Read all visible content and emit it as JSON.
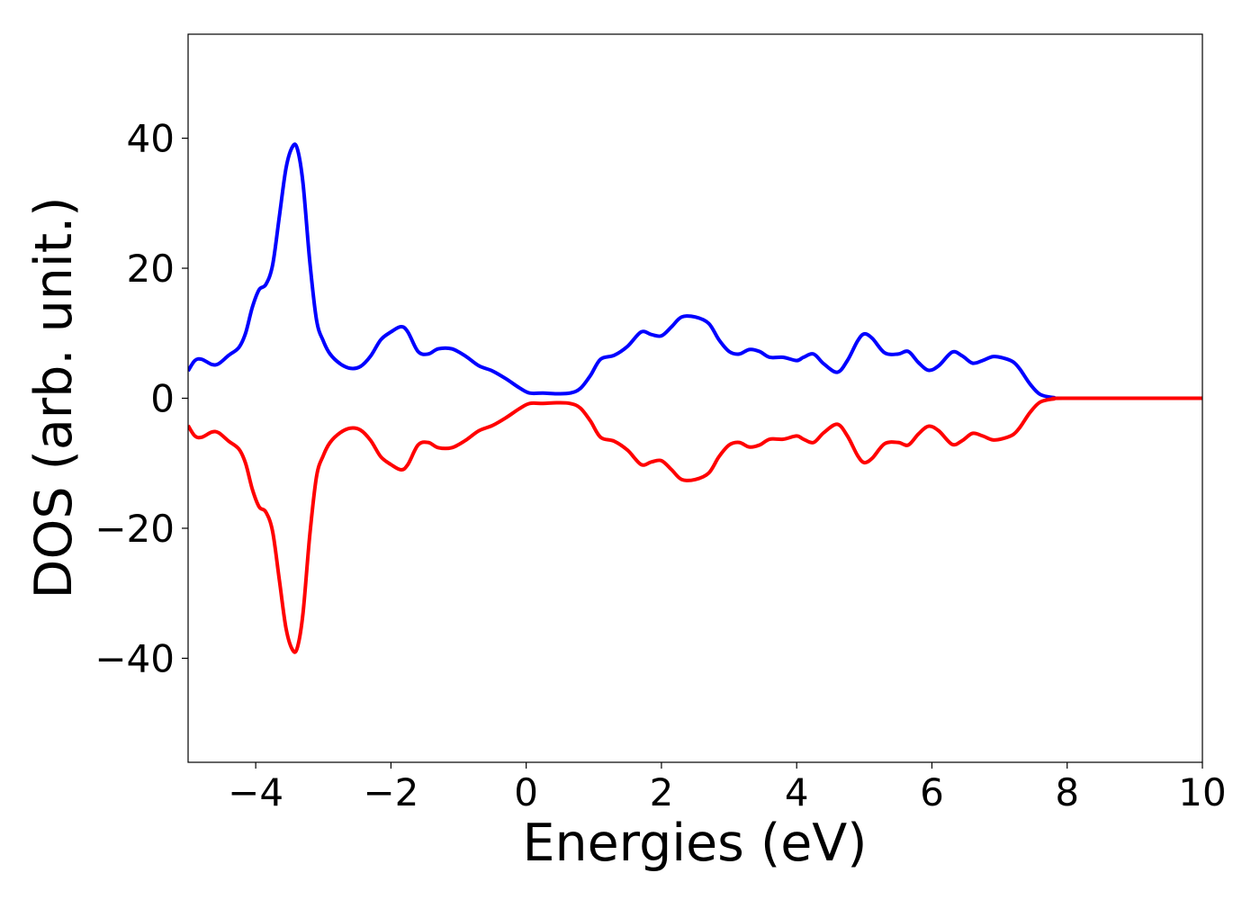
{
  "chart_data": {
    "type": "line",
    "title": "",
    "xlabel": "Energies (eV)",
    "ylabel": "DOS (arb. unit.)",
    "xlim": [
      -5,
      10
    ],
    "ylim": [
      -56,
      56
    ],
    "grid": false,
    "legend": "none",
    "x_ticks": [
      {
        "value": -4,
        "label": "−4"
      },
      {
        "value": -2,
        "label": "−2"
      },
      {
        "value": 0,
        "label": "0"
      },
      {
        "value": 2,
        "label": "2"
      },
      {
        "value": 4,
        "label": "4"
      },
      {
        "value": 6,
        "label": "6"
      },
      {
        "value": 8,
        "label": "8"
      },
      {
        "value": 10,
        "label": "10"
      }
    ],
    "y_ticks": [
      {
        "value": 40,
        "label": "40"
      },
      {
        "value": 20,
        "label": "20"
      },
      {
        "value": 0,
        "label": "0"
      },
      {
        "value": -20,
        "label": "−20"
      },
      {
        "value": -40,
        "label": "−40"
      }
    ],
    "series": [
      {
        "color": "#0000ff",
        "points": [
          [
            -5.0,
            4.2
          ],
          [
            -4.9,
            5.8
          ],
          [
            -4.8,
            6.0
          ],
          [
            -4.65,
            5.2
          ],
          [
            -4.55,
            5.3
          ],
          [
            -4.4,
            6.6
          ],
          [
            -4.25,
            7.8
          ],
          [
            -4.15,
            10.0
          ],
          [
            -4.05,
            14.0
          ],
          [
            -3.95,
            16.7
          ],
          [
            -3.85,
            17.5
          ],
          [
            -3.75,
            20.5
          ],
          [
            -3.65,
            28.0
          ],
          [
            -3.55,
            35.5
          ],
          [
            -3.45,
            38.8
          ],
          [
            -3.38,
            38.2
          ],
          [
            -3.3,
            33.0
          ],
          [
            -3.2,
            21.0
          ],
          [
            -3.1,
            12.0
          ],
          [
            -3.0,
            8.8
          ],
          [
            -2.9,
            6.8
          ],
          [
            -2.75,
            5.3
          ],
          [
            -2.6,
            4.6
          ],
          [
            -2.45,
            4.9
          ],
          [
            -2.3,
            6.5
          ],
          [
            -2.15,
            9.0
          ],
          [
            -2.0,
            10.2
          ],
          [
            -1.85,
            11.0
          ],
          [
            -1.75,
            10.2
          ],
          [
            -1.6,
            7.2
          ],
          [
            -1.45,
            6.8
          ],
          [
            -1.3,
            7.6
          ],
          [
            -1.1,
            7.6
          ],
          [
            -0.9,
            6.5
          ],
          [
            -0.7,
            5.0
          ],
          [
            -0.5,
            4.2
          ],
          [
            -0.3,
            3.0
          ],
          [
            -0.1,
            1.6
          ],
          [
            0.05,
            0.8
          ],
          [
            0.25,
            0.8
          ],
          [
            0.45,
            0.7
          ],
          [
            0.65,
            0.8
          ],
          [
            0.8,
            1.5
          ],
          [
            0.95,
            3.5
          ],
          [
            1.1,
            6.0
          ],
          [
            1.3,
            6.6
          ],
          [
            1.5,
            8.0
          ],
          [
            1.7,
            10.2
          ],
          [
            1.85,
            9.8
          ],
          [
            2.0,
            9.6
          ],
          [
            2.15,
            11.0
          ],
          [
            2.3,
            12.5
          ],
          [
            2.5,
            12.5
          ],
          [
            2.7,
            11.5
          ],
          [
            2.85,
            9.0
          ],
          [
            3.0,
            7.2
          ],
          [
            3.15,
            6.8
          ],
          [
            3.3,
            7.5
          ],
          [
            3.45,
            7.2
          ],
          [
            3.6,
            6.3
          ],
          [
            3.8,
            6.3
          ],
          [
            4.0,
            5.8
          ],
          [
            4.1,
            6.3
          ],
          [
            4.25,
            6.8
          ],
          [
            4.4,
            5.3
          ],
          [
            4.6,
            4.0
          ],
          [
            4.75,
            5.8
          ],
          [
            4.9,
            8.8
          ],
          [
            5.0,
            9.9
          ],
          [
            5.12,
            9.2
          ],
          [
            5.3,
            7.0
          ],
          [
            5.5,
            6.8
          ],
          [
            5.65,
            7.2
          ],
          [
            5.8,
            5.5
          ],
          [
            5.95,
            4.3
          ],
          [
            6.1,
            5.0
          ],
          [
            6.3,
            7.1
          ],
          [
            6.45,
            6.5
          ],
          [
            6.6,
            5.4
          ],
          [
            6.75,
            5.8
          ],
          [
            6.9,
            6.4
          ],
          [
            7.05,
            6.2
          ],
          [
            7.2,
            5.6
          ],
          [
            7.3,
            4.5
          ],
          [
            7.45,
            2.2
          ],
          [
            7.6,
            0.6
          ],
          [
            7.8,
            0.1
          ],
          [
            8.0,
            0.0
          ],
          [
            10.0,
            0.0
          ]
        ]
      },
      {
        "color": "#ff0000",
        "points": [
          [
            -5.0,
            -4.2
          ],
          [
            -4.9,
            -5.8
          ],
          [
            -4.8,
            -6.0
          ],
          [
            -4.65,
            -5.2
          ],
          [
            -4.55,
            -5.3
          ],
          [
            -4.4,
            -6.6
          ],
          [
            -4.25,
            -7.8
          ],
          [
            -4.15,
            -10.0
          ],
          [
            -4.05,
            -14.0
          ],
          [
            -3.95,
            -16.7
          ],
          [
            -3.85,
            -17.5
          ],
          [
            -3.75,
            -20.5
          ],
          [
            -3.65,
            -28.0
          ],
          [
            -3.55,
            -35.5
          ],
          [
            -3.45,
            -38.8
          ],
          [
            -3.38,
            -38.2
          ],
          [
            -3.3,
            -33.0
          ],
          [
            -3.2,
            -21.0
          ],
          [
            -3.1,
            -12.0
          ],
          [
            -3.0,
            -8.8
          ],
          [
            -2.9,
            -6.8
          ],
          [
            -2.75,
            -5.3
          ],
          [
            -2.6,
            -4.6
          ],
          [
            -2.45,
            -4.9
          ],
          [
            -2.3,
            -6.5
          ],
          [
            -2.15,
            -9.0
          ],
          [
            -2.0,
            -10.2
          ],
          [
            -1.85,
            -11.0
          ],
          [
            -1.75,
            -10.2
          ],
          [
            -1.6,
            -7.2
          ],
          [
            -1.45,
            -6.8
          ],
          [
            -1.3,
            -7.6
          ],
          [
            -1.1,
            -7.6
          ],
          [
            -0.9,
            -6.5
          ],
          [
            -0.7,
            -5.0
          ],
          [
            -0.5,
            -4.2
          ],
          [
            -0.3,
            -3.0
          ],
          [
            -0.1,
            -1.6
          ],
          [
            0.05,
            -0.8
          ],
          [
            0.25,
            -0.8
          ],
          [
            0.45,
            -0.7
          ],
          [
            0.65,
            -0.8
          ],
          [
            0.8,
            -1.5
          ],
          [
            0.95,
            -3.5
          ],
          [
            1.1,
            -6.0
          ],
          [
            1.3,
            -6.6
          ],
          [
            1.5,
            -8.0
          ],
          [
            1.7,
            -10.2
          ],
          [
            1.85,
            -9.8
          ],
          [
            2.0,
            -9.6
          ],
          [
            2.15,
            -11.0
          ],
          [
            2.3,
            -12.5
          ],
          [
            2.5,
            -12.5
          ],
          [
            2.7,
            -11.5
          ],
          [
            2.85,
            -9.0
          ],
          [
            3.0,
            -7.2
          ],
          [
            3.15,
            -6.8
          ],
          [
            3.3,
            -7.5
          ],
          [
            3.45,
            -7.2
          ],
          [
            3.6,
            -6.3
          ],
          [
            3.8,
            -6.3
          ],
          [
            4.0,
            -5.8
          ],
          [
            4.1,
            -6.3
          ],
          [
            4.25,
            -6.8
          ],
          [
            4.4,
            -5.3
          ],
          [
            4.6,
            -4.0
          ],
          [
            4.75,
            -5.8
          ],
          [
            4.9,
            -8.8
          ],
          [
            5.0,
            -9.9
          ],
          [
            5.12,
            -9.2
          ],
          [
            5.3,
            -7.0
          ],
          [
            5.5,
            -6.8
          ],
          [
            5.65,
            -7.2
          ],
          [
            5.8,
            -5.5
          ],
          [
            5.95,
            -4.3
          ],
          [
            6.1,
            -5.0
          ],
          [
            6.3,
            -7.1
          ],
          [
            6.45,
            -6.5
          ],
          [
            6.6,
            -5.4
          ],
          [
            6.75,
            -5.8
          ],
          [
            6.9,
            -6.4
          ],
          [
            7.05,
            -6.2
          ],
          [
            7.2,
            -5.6
          ],
          [
            7.3,
            -4.5
          ],
          [
            7.45,
            -2.2
          ],
          [
            7.6,
            -0.6
          ],
          [
            7.8,
            -0.1
          ],
          [
            8.0,
            0.0
          ],
          [
            10.0,
            0.0
          ]
        ]
      }
    ]
  }
}
